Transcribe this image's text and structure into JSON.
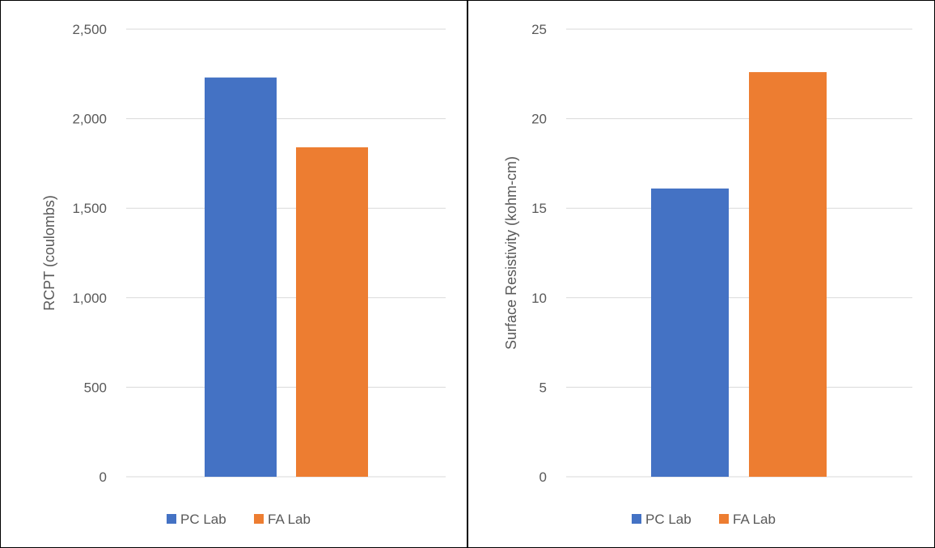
{
  "chart_data": [
    {
      "type": "bar",
      "title": "",
      "xlabel": "",
      "ylabel": "RCPT (coulombs)",
      "ylim": [
        0,
        2500
      ],
      "yticks": [
        0,
        500,
        1000,
        1500,
        2000,
        2500
      ],
      "ytick_labels": [
        "0",
        "500",
        "1,000",
        "1,500",
        "2,000",
        "2,500"
      ],
      "grid": true,
      "legend_position": "bottom-left",
      "series": [
        {
          "name": "PC Lab",
          "color": "#4472C4",
          "values": [
            2230
          ]
        },
        {
          "name": "FA Lab",
          "color": "#ED7D31",
          "values": [
            1840
          ]
        }
      ]
    },
    {
      "type": "bar",
      "title": "",
      "xlabel": "",
      "ylabel": "Surface Resistivity (kohm-cm)",
      "ylim": [
        0,
        25
      ],
      "yticks": [
        0,
        5,
        10,
        15,
        20,
        25
      ],
      "ytick_labels": [
        "0",
        "5",
        "10",
        "15",
        "20",
        "25"
      ],
      "grid": true,
      "legend_position": "bottom-left",
      "series": [
        {
          "name": "PC Lab",
          "color": "#4472C4",
          "values": [
            16.1
          ]
        },
        {
          "name": "FA Lab",
          "color": "#ED7D31",
          "values": [
            22.6
          ]
        }
      ]
    }
  ]
}
